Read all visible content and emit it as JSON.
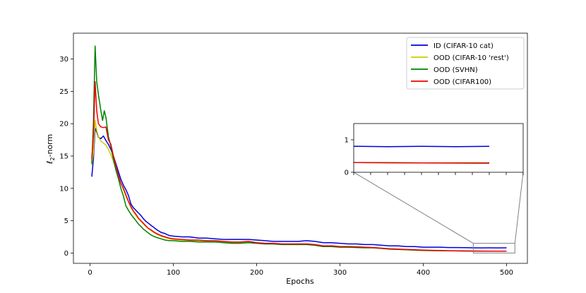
{
  "chart_data": {
    "type": "line",
    "xlabel": "Epochs",
    "ylabel_main": "ℓ",
    "ylabel_sub": "2",
    "ylabel_rest": "-norm",
    "xlim": [
      -20,
      525
    ],
    "ylim": [
      -1.6,
      34.0
    ],
    "xticks": [
      0,
      100,
      200,
      300,
      400,
      500
    ],
    "yticks": [
      0,
      5,
      10,
      15,
      20,
      25,
      30
    ],
    "grid": false,
    "legend_position": "upper right",
    "series": [
      {
        "name": "ID (CIFAR-10 cat)",
        "color": "#0000dd",
        "points": [
          [
            2,
            11.8
          ],
          [
            4,
            14.5
          ],
          [
            6,
            19.3
          ],
          [
            8,
            18.7
          ],
          [
            10,
            17.9
          ],
          [
            13,
            17.7
          ],
          [
            16,
            18.1
          ],
          [
            19,
            17.4
          ],
          [
            22,
            16.8
          ],
          [
            25,
            16.0
          ],
          [
            28,
            15.0
          ],
          [
            31,
            13.8
          ],
          [
            34,
            12.6
          ],
          [
            37,
            11.4
          ],
          [
            40,
            10.5
          ],
          [
            43,
            9.8
          ],
          [
            46,
            8.9
          ],
          [
            49,
            7.6
          ],
          [
            52,
            7.0
          ],
          [
            55,
            6.6
          ],
          [
            58,
            6.2
          ],
          [
            61,
            5.8
          ],
          [
            64,
            5.3
          ],
          [
            67,
            4.9
          ],
          [
            70,
            4.6
          ],
          [
            73,
            4.3
          ],
          [
            76,
            4.0
          ],
          [
            80,
            3.6
          ],
          [
            85,
            3.2
          ],
          [
            90,
            3.0
          ],
          [
            95,
            2.7
          ],
          [
            100,
            2.6
          ],
          [
            110,
            2.5
          ],
          [
            120,
            2.5
          ],
          [
            130,
            2.3
          ],
          [
            140,
            2.3
          ],
          [
            150,
            2.2
          ],
          [
            160,
            2.1
          ],
          [
            170,
            2.1
          ],
          [
            180,
            2.1
          ],
          [
            190,
            2.1
          ],
          [
            200,
            2.0
          ],
          [
            210,
            1.9
          ],
          [
            220,
            1.8
          ],
          [
            230,
            1.8
          ],
          [
            240,
            1.8
          ],
          [
            250,
            1.8
          ],
          [
            260,
            1.9
          ],
          [
            270,
            1.8
          ],
          [
            280,
            1.6
          ],
          [
            290,
            1.6
          ],
          [
            300,
            1.5
          ],
          [
            310,
            1.4
          ],
          [
            320,
            1.4
          ],
          [
            330,
            1.3
          ],
          [
            340,
            1.3
          ],
          [
            350,
            1.2
          ],
          [
            360,
            1.1
          ],
          [
            370,
            1.1
          ],
          [
            380,
            1.0
          ],
          [
            390,
            1.0
          ],
          [
            400,
            0.9
          ],
          [
            410,
            0.9
          ],
          [
            420,
            0.9
          ],
          [
            430,
            0.85
          ],
          [
            440,
            0.85
          ],
          [
            450,
            0.82
          ],
          [
            460,
            0.8
          ],
          [
            470,
            0.79
          ],
          [
            480,
            0.8
          ],
          [
            490,
            0.79
          ],
          [
            500,
            0.8
          ]
        ]
      },
      {
        "name": "OOD (CIFAR-10 'rest')",
        "color": "#cccc00",
        "points": [
          [
            2,
            13.5
          ],
          [
            4,
            15.5
          ],
          [
            6,
            20.5
          ],
          [
            8,
            19.0
          ],
          [
            10,
            18.0
          ],
          [
            13,
            17.3
          ],
          [
            16,
            17.0
          ],
          [
            19,
            16.7
          ],
          [
            22,
            16.0
          ],
          [
            25,
            15.2
          ],
          [
            28,
            14.2
          ],
          [
            31,
            13.0
          ],
          [
            34,
            11.8
          ],
          [
            37,
            10.8
          ],
          [
            40,
            9.8
          ],
          [
            43,
            8.8
          ],
          [
            46,
            7.9
          ],
          [
            49,
            7.0
          ],
          [
            52,
            6.4
          ],
          [
            55,
            5.8
          ],
          [
            58,
            5.3
          ],
          [
            61,
            4.9
          ],
          [
            64,
            4.5
          ],
          [
            67,
            4.1
          ],
          [
            70,
            3.8
          ],
          [
            73,
            3.5
          ],
          [
            76,
            3.2
          ],
          [
            80,
            2.9
          ],
          [
            85,
            2.6
          ],
          [
            90,
            2.4
          ],
          [
            95,
            2.2
          ],
          [
            100,
            2.1
          ],
          [
            110,
            2.0
          ],
          [
            120,
            1.9
          ],
          [
            130,
            1.9
          ],
          [
            140,
            1.8
          ],
          [
            150,
            1.8
          ],
          [
            160,
            1.7
          ],
          [
            170,
            1.6
          ],
          [
            180,
            1.6
          ],
          [
            190,
            1.7
          ],
          [
            200,
            1.5
          ],
          [
            210,
            1.4
          ],
          [
            220,
            1.4
          ],
          [
            230,
            1.3
          ],
          [
            240,
            1.3
          ],
          [
            250,
            1.3
          ],
          [
            260,
            1.3
          ],
          [
            270,
            1.2
          ],
          [
            280,
            1.0
          ],
          [
            290,
            1.0
          ],
          [
            300,
            0.9
          ],
          [
            310,
            0.9
          ],
          [
            320,
            0.9
          ],
          [
            330,
            0.85
          ],
          [
            340,
            0.8
          ],
          [
            350,
            0.7
          ],
          [
            360,
            0.6
          ],
          [
            370,
            0.55
          ],
          [
            380,
            0.5
          ],
          [
            390,
            0.45
          ],
          [
            400,
            0.4
          ],
          [
            420,
            0.35
          ],
          [
            440,
            0.32
          ],
          [
            460,
            0.3
          ],
          [
            480,
            0.29
          ],
          [
            500,
            0.28
          ]
        ]
      },
      {
        "name": "OOD (SVHN)",
        "color": "#008000",
        "points": [
          [
            2,
            13.8
          ],
          [
            4,
            20.0
          ],
          [
            6,
            32.0
          ],
          [
            8,
            26.5
          ],
          [
            10,
            24.5
          ],
          [
            13,
            22.0
          ],
          [
            15,
            20.5
          ],
          [
            17,
            22.0
          ],
          [
            19,
            21.0
          ],
          [
            22,
            18.0
          ],
          [
            25,
            16.5
          ],
          [
            28,
            14.5
          ],
          [
            31,
            12.8
          ],
          [
            34,
            11.5
          ],
          [
            37,
            10.0
          ],
          [
            40,
            8.8
          ],
          [
            43,
            7.3
          ],
          [
            46,
            6.6
          ],
          [
            49,
            6.0
          ],
          [
            52,
            5.5
          ],
          [
            55,
            5.0
          ],
          [
            58,
            4.5
          ],
          [
            61,
            4.1
          ],
          [
            64,
            3.7
          ],
          [
            67,
            3.4
          ],
          [
            70,
            3.1
          ],
          [
            73,
            2.8
          ],
          [
            76,
            2.6
          ],
          [
            80,
            2.4
          ],
          [
            85,
            2.2
          ],
          [
            90,
            2.0
          ],
          [
            95,
            1.9
          ],
          [
            100,
            1.9
          ],
          [
            110,
            1.8
          ],
          [
            120,
            1.8
          ],
          [
            130,
            1.7
          ],
          [
            140,
            1.7
          ],
          [
            150,
            1.7
          ],
          [
            160,
            1.6
          ],
          [
            170,
            1.5
          ],
          [
            180,
            1.5
          ],
          [
            190,
            1.6
          ],
          [
            200,
            1.5
          ],
          [
            210,
            1.4
          ],
          [
            220,
            1.4
          ],
          [
            230,
            1.3
          ],
          [
            240,
            1.3
          ],
          [
            250,
            1.3
          ],
          [
            260,
            1.3
          ],
          [
            270,
            1.2
          ],
          [
            280,
            1.0
          ],
          [
            290,
            1.0
          ],
          [
            300,
            0.9
          ],
          [
            310,
            0.9
          ],
          [
            320,
            0.85
          ],
          [
            330,
            0.8
          ],
          [
            340,
            0.8
          ],
          [
            350,
            0.7
          ],
          [
            360,
            0.6
          ],
          [
            370,
            0.55
          ],
          [
            380,
            0.5
          ],
          [
            390,
            0.45
          ],
          [
            400,
            0.4
          ],
          [
            420,
            0.35
          ],
          [
            440,
            0.32
          ],
          [
            460,
            0.3
          ],
          [
            480,
            0.29
          ],
          [
            500,
            0.28
          ]
        ]
      },
      {
        "name": "OOD (CIFAR100)",
        "color": "#ee0000",
        "points": [
          [
            2,
            14.6
          ],
          [
            4,
            18.0
          ],
          [
            6,
            26.5
          ],
          [
            8,
            22.0
          ],
          [
            10,
            20.0
          ],
          [
            13,
            19.5
          ],
          [
            16,
            19.4
          ],
          [
            19,
            19.5
          ],
          [
            22,
            17.5
          ],
          [
            25,
            16.8
          ],
          [
            28,
            15.0
          ],
          [
            31,
            13.5
          ],
          [
            34,
            12.0
          ],
          [
            37,
            10.8
          ],
          [
            40,
            10.0
          ],
          [
            43,
            9.0
          ],
          [
            46,
            8.0
          ],
          [
            49,
            7.2
          ],
          [
            52,
            6.5
          ],
          [
            55,
            6.0
          ],
          [
            58,
            5.4
          ],
          [
            61,
            5.0
          ],
          [
            64,
            4.6
          ],
          [
            67,
            4.2
          ],
          [
            70,
            3.8
          ],
          [
            73,
            3.6
          ],
          [
            76,
            3.3
          ],
          [
            80,
            3.0
          ],
          [
            85,
            2.7
          ],
          [
            90,
            2.5
          ],
          [
            95,
            2.3
          ],
          [
            100,
            2.2
          ],
          [
            110,
            2.1
          ],
          [
            120,
            2.0
          ],
          [
            130,
            2.0
          ],
          [
            140,
            1.9
          ],
          [
            150,
            1.9
          ],
          [
            160,
            1.8
          ],
          [
            170,
            1.7
          ],
          [
            180,
            1.7
          ],
          [
            190,
            1.8
          ],
          [
            200,
            1.6
          ],
          [
            210,
            1.5
          ],
          [
            220,
            1.5
          ],
          [
            230,
            1.4
          ],
          [
            240,
            1.4
          ],
          [
            250,
            1.4
          ],
          [
            260,
            1.4
          ],
          [
            270,
            1.3
          ],
          [
            280,
            1.1
          ],
          [
            290,
            1.1
          ],
          [
            300,
            1.0
          ],
          [
            310,
            1.0
          ],
          [
            320,
            0.95
          ],
          [
            330,
            0.9
          ],
          [
            340,
            0.85
          ],
          [
            350,
            0.75
          ],
          [
            360,
            0.65
          ],
          [
            370,
            0.6
          ],
          [
            380,
            0.55
          ],
          [
            390,
            0.5
          ],
          [
            400,
            0.45
          ],
          [
            420,
            0.38
          ],
          [
            440,
            0.33
          ],
          [
            460,
            0.3
          ],
          [
            480,
            0.29
          ],
          [
            500,
            0.29
          ]
        ]
      }
    ],
    "inset": {
      "xlim": [
        460,
        510
      ],
      "ylim": [
        0,
        1.5
      ],
      "yticks": [
        0,
        1
      ],
      "xtick_count": 10
    }
  }
}
